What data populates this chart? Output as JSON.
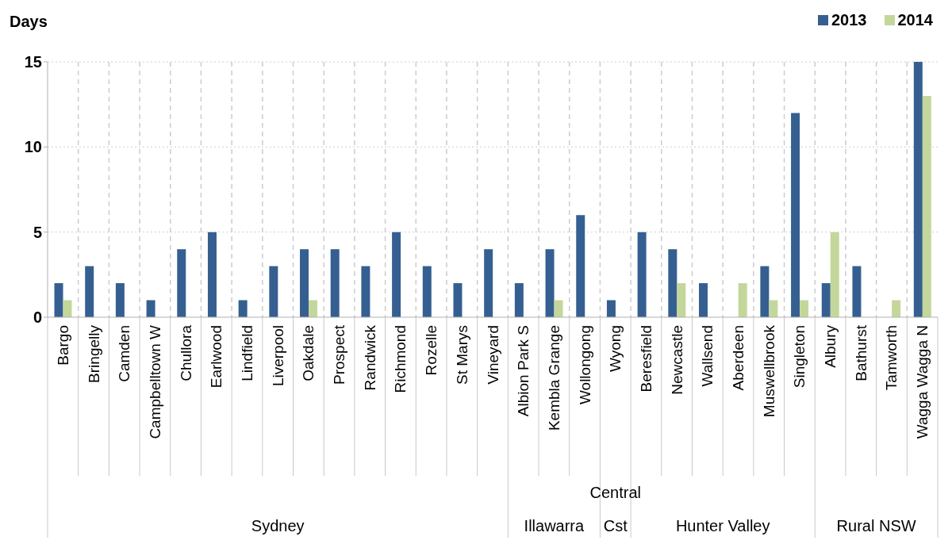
{
  "chart_data": {
    "type": "bar",
    "ylabel": "Days",
    "categories": [
      "Bargo",
      "Bringelly",
      "Camden",
      "Campbelltown W",
      "Chullora",
      "Earlwood",
      "Lindfield",
      "Liverpool",
      "Oakdale",
      "Prospect",
      "Randwick",
      "Richmond",
      "Rozelle",
      "St Marys",
      "Vineyard",
      "Albion Park S",
      "Kembla Grange",
      "Wollongong",
      "Wyong",
      "Beresfield",
      "Newcastle",
      "Wallsend",
      "Aberdeen",
      "Muswellbrook",
      "Singleton",
      "Albury",
      "Bathurst",
      "Tamworth",
      "Wagga Wagga N"
    ],
    "series": [
      {
        "name": "2013",
        "color": "#365f91",
        "values": [
          2,
          3,
          2,
          1,
          4,
          5,
          1,
          3,
          4,
          4,
          3,
          5,
          3,
          2,
          4,
          2,
          4,
          6,
          1,
          5,
          4,
          2,
          null,
          3,
          12,
          2,
          3,
          null,
          15
        ]
      },
      {
        "name": "2014",
        "color": "#c4d79b",
        "values": [
          1,
          null,
          null,
          null,
          null,
          null,
          null,
          null,
          1,
          null,
          null,
          null,
          null,
          null,
          null,
          null,
          1,
          null,
          null,
          null,
          2,
          null,
          2,
          1,
          1,
          5,
          null,
          1,
          13
        ]
      }
    ],
    "ylim": [
      0,
      15
    ],
    "yticks": [
      0,
      5,
      10,
      15
    ],
    "grid": true,
    "legend": "top right",
    "annotations": [
      "Sydney",
      "Illawarra",
      "Central Cst",
      "Hunter Valley",
      "Rural NSW"
    ]
  }
}
